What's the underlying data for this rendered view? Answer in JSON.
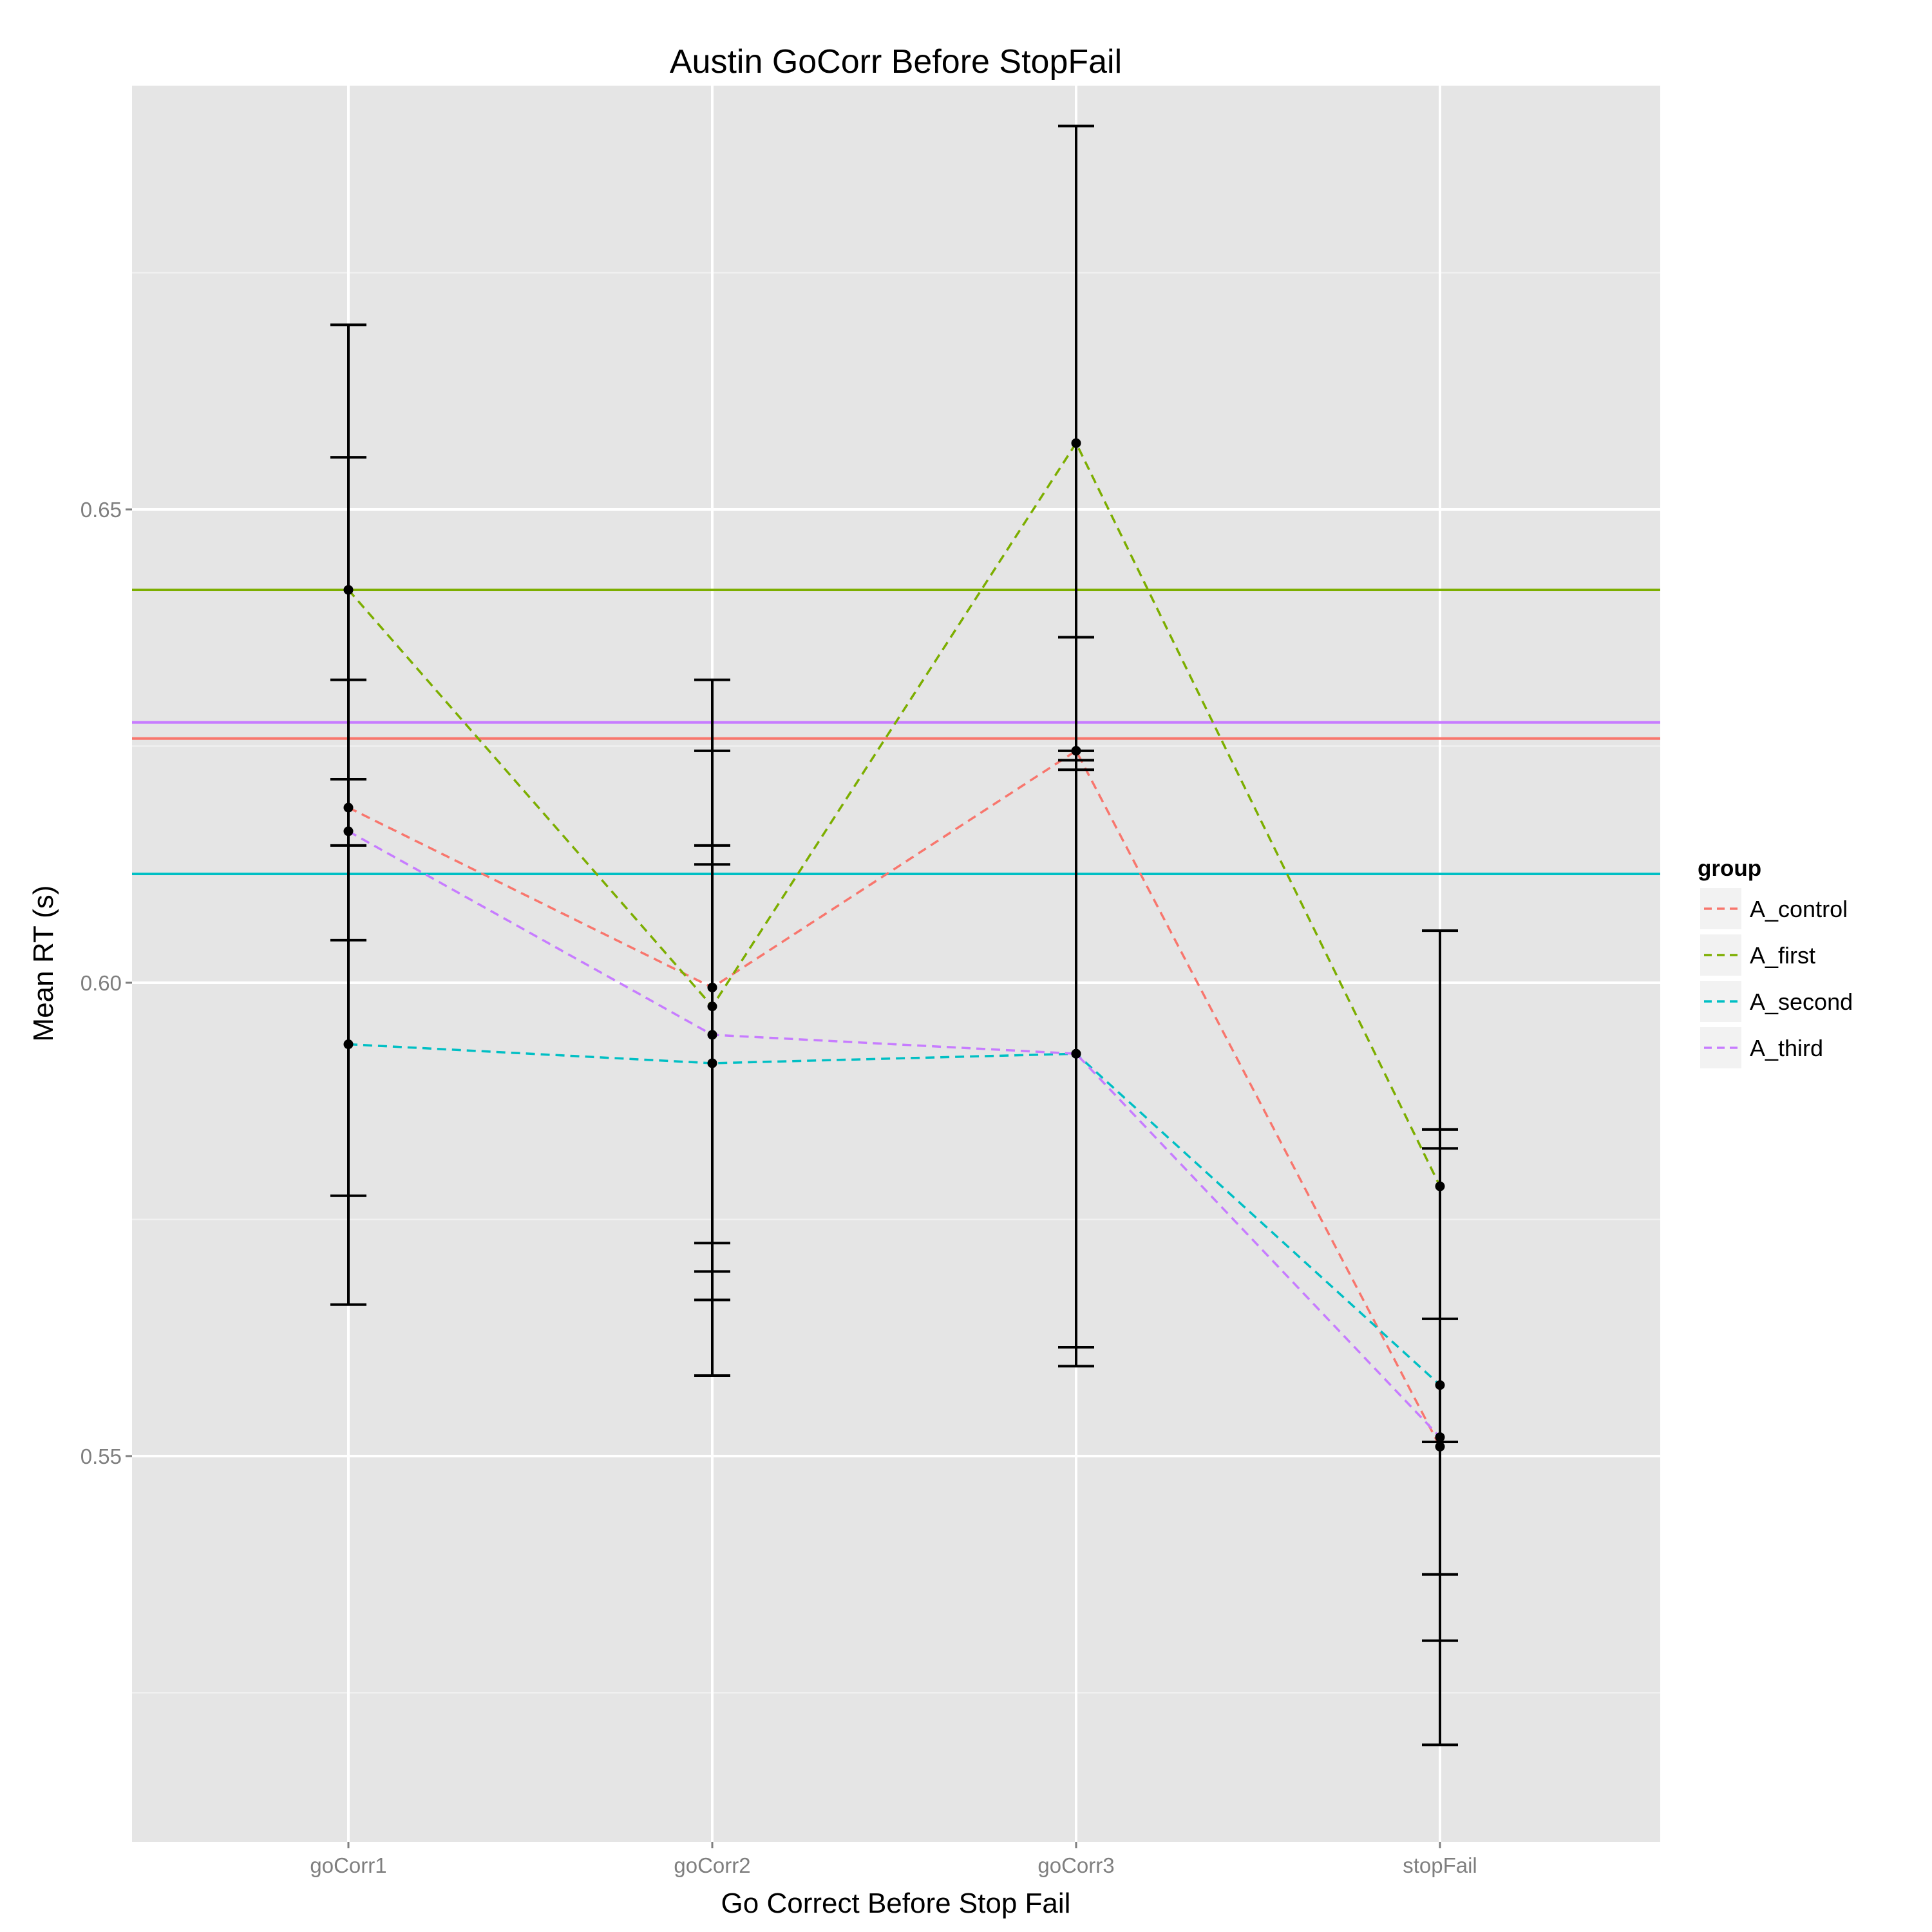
{
  "chart_data": {
    "type": "line",
    "title": "Austin GoCorr Before StopFail",
    "xlabel": "Go Correct Before Stop Fail",
    "ylabel": "Mean RT (s)",
    "categories": [
      "goCorr1",
      "goCorr2",
      "goCorr3",
      "stopFail"
    ],
    "ylim": [
      0.5,
      0.685
    ],
    "yticks": [
      0.55,
      0.6,
      0.65
    ],
    "ytick_labels": [
      "0.55",
      "0.60",
      "0.65"
    ],
    "grid": true,
    "legend": {
      "title": "group",
      "position": "right"
    },
    "series": [
      {
        "name": "A_control",
        "color": "#F8766D",
        "values": [
          0.6185,
          0.5995,
          0.6245,
          0.551
        ],
        "ci_low": [
          0.6045,
          0.5725,
          0.5615,
          0.5195
        ],
        "ci_high": [
          0.632,
          0.6245,
          0.6225,
          0.5825
        ],
        "mean_line": 0.6258
      },
      {
        "name": "A_first",
        "color": "#7CAE00",
        "values": [
          0.6415,
          0.5975,
          0.657,
          0.5785
        ],
        "ci_low": [
          0.6145,
          0.5585,
          0.6245,
          0.5515
        ],
        "ci_high": [
          0.6695,
          0.632,
          0.6905,
          0.6055
        ],
        "mean_line": 0.6415
      },
      {
        "name": "A_second",
        "color": "#00BFC4",
        "values": [
          0.5935,
          0.5915,
          0.5925,
          0.5575
        ],
        "ci_low": [
          0.566,
          0.5665,
          0.5615,
          0.5305
        ],
        "ci_high": [
          0.6215,
          0.6145,
          0.6235,
          0.5845
        ],
        "mean_line": 0.6115
      },
      {
        "name": "A_third",
        "color": "#C77CFF",
        "values": [
          0.616,
          0.5945,
          0.5925,
          0.552
        ],
        "ci_low": [
          0.5775,
          0.5695,
          0.5595,
          0.5375
        ],
        "ci_high": [
          0.6555,
          0.6125,
          0.6365,
          0.5645
        ],
        "mean_line": 0.6275
      }
    ]
  }
}
